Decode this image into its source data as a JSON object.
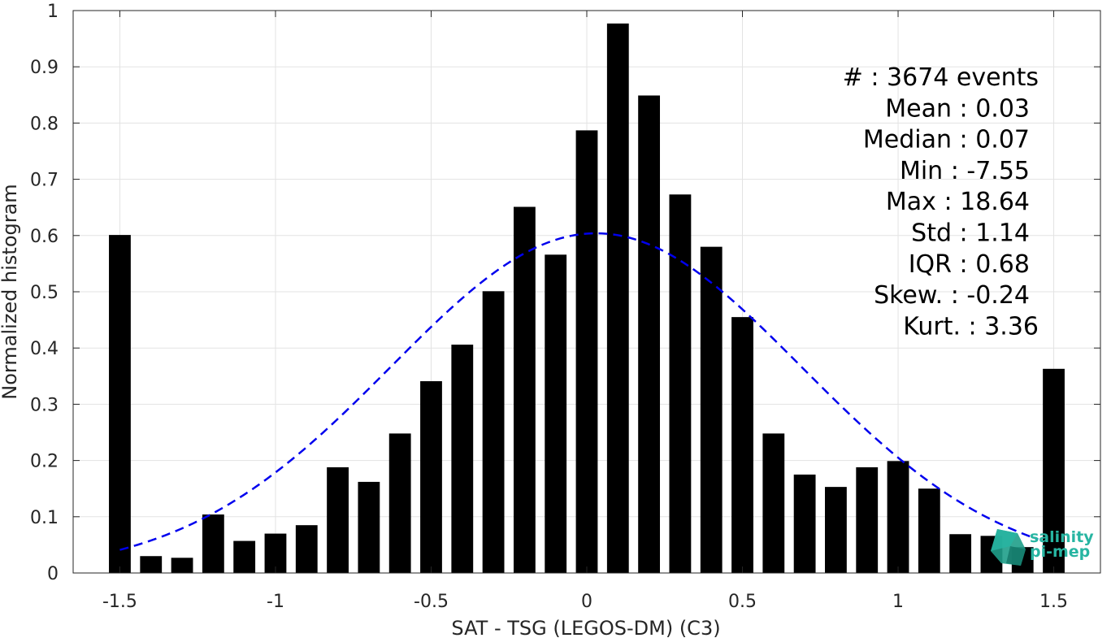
{
  "chart_data": {
    "type": "bar",
    "xlabel": "SAT - TSG (LEGOS-DM) (C3)",
    "ylabel": "Normalized histogram",
    "xlim": [
      -1.65,
      1.65
    ],
    "ylim": [
      0,
      1
    ],
    "grid": true,
    "x_ticks": [
      -1.5,
      -1,
      -0.5,
      0,
      0.5,
      1,
      1.5
    ],
    "x_tick_labels": [
      "-1.5",
      "-1",
      "-0.5",
      "0",
      "0.5",
      "1",
      "1.5"
    ],
    "y_ticks": [
      0,
      0.1,
      0.2,
      0.3,
      0.4,
      0.5,
      0.6,
      0.7,
      0.8,
      0.9,
      1
    ],
    "y_tick_labels": [
      "0",
      "0.1",
      "0.2",
      "0.3",
      "0.4",
      "0.5",
      "0.6",
      "0.7",
      "0.8",
      "0.9",
      "1"
    ],
    "bar_color": "#000000",
    "bar_width": 0.07,
    "bars": {
      "x": [
        -1.5,
        -1.4,
        -1.3,
        -1.2,
        -1.1,
        -1.0,
        -0.9,
        -0.8,
        -0.7,
        -0.6,
        -0.5,
        -0.4,
        -0.3,
        -0.2,
        -0.1,
        0.0,
        0.1,
        0.2,
        0.3,
        0.4,
        0.5,
        0.6,
        0.7,
        0.8,
        0.9,
        1.0,
        1.1,
        1.2,
        1.3,
        1.4,
        1.5
      ],
      "values": [
        0.601,
        0.03,
        0.027,
        0.104,
        0.057,
        0.07,
        0.085,
        0.188,
        0.162,
        0.248,
        0.341,
        0.406,
        0.501,
        0.651,
        0.566,
        0.787,
        0.977,
        0.849,
        0.673,
        0.58,
        0.455,
        0.248,
        0.175,
        0.153,
        0.188,
        0.199,
        0.15,
        0.069,
        0.066,
        0.046,
        0.363
      ]
    },
    "fit_curve": {
      "style": "dashed",
      "color": "#0000ee",
      "mean": 0.03,
      "std": 0.66,
      "peak": 0.604,
      "x_range": [
        -1.5,
        1.45
      ]
    },
    "annotation": {
      "lines": [
        "#  : 3674 events",
        "Mean : 0.03",
        "Median : 0.07",
        "Min : -7.55",
        "Max : 18.64",
        "Std : 1.14",
        "IQR : 0.68",
        "Skew. : -0.24",
        "Kurt. : 3.36"
      ]
    }
  },
  "logo": {
    "line1": "salinity",
    "line2": "pi-mep",
    "color": "#27b5a2"
  }
}
